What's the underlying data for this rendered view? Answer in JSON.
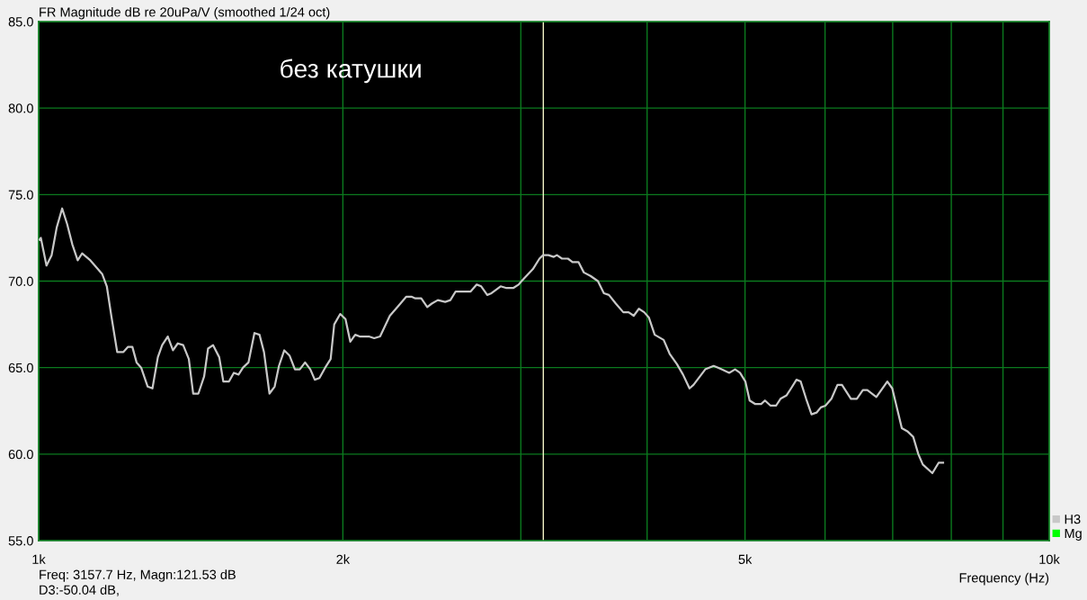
{
  "chart_data": {
    "type": "line",
    "title": "FR Magnitude dB re 20uPa/V (smoothed 1/24 oct)",
    "xlabel": "Frequency (Hz)",
    "annotations": [
      "без катушки",
      "Freq: 3157.7 Hz, Magn:121.53 dB",
      "D3:-50.04 dB,"
    ],
    "series": [
      {
        "name": "H3",
        "color": "#c8c8c8",
        "x": [
          1002,
          1005,
          1018,
          1030,
          1042,
          1055,
          1067,
          1080,
          1093,
          1104,
          1125,
          1156,
          1168,
          1180,
          1196,
          1213,
          1226,
          1238,
          1250,
          1263,
          1282,
          1296,
          1312,
          1325,
          1342,
          1358,
          1373,
          1390,
          1408,
          1422,
          1439,
          1458,
          1471,
          1488,
          1509,
          1523,
          1543,
          1560,
          1577,
          1593,
          1613,
          1635,
          1654,
          1671,
          1692,
          1712,
          1729,
          1750,
          1771,
          1793,
          1813,
          1835,
          1857,
          1876,
          1896,
          1921,
          1945,
          1961,
          1988,
          2012,
          2034,
          2057,
          2078,
          2122,
          2148,
          2177,
          2226,
          2272,
          2311,
          2338,
          2359,
          2391,
          2424,
          2449,
          2483,
          2525,
          2555,
          2586,
          2622,
          2676,
          2713,
          2741,
          2779,
          2806,
          2865,
          2904,
          2948,
          2985,
          3005,
          3084,
          3130,
          3156,
          3195,
          3234,
          3257,
          3295,
          3340,
          3375,
          3421,
          3463,
          3516,
          3576,
          3625,
          3667,
          3725,
          3789,
          3835,
          3880,
          3926,
          3974,
          4016,
          4070,
          4154,
          4211,
          4282,
          4341,
          4406,
          4446,
          4567,
          4655,
          4702,
          4740,
          4823,
          4888,
          4943,
          5004,
          5053,
          5115,
          5187,
          5232,
          5300,
          5366,
          5421,
          5497,
          5553,
          5622,
          5676,
          5747,
          5818,
          5885,
          5943,
          6005,
          6088,
          6172,
          6236,
          6365,
          6451,
          6540,
          6607,
          6744,
          6915,
          6993,
          7147,
          7245,
          7335,
          7421,
          7497,
          7662,
          7772,
          7852
        ],
        "values": [
          72.4,
          72.5,
          70.9,
          71.5,
          73.1,
          74.2,
          73.3,
          72.1,
          71.2,
          71.6,
          71.2,
          70.4,
          69.7,
          68.0,
          65.9,
          65.9,
          66.2,
          66.2,
          65.3,
          65.0,
          63.9,
          63.8,
          65.6,
          66.3,
          66.8,
          66.0,
          66.4,
          66.3,
          65.5,
          63.5,
          63.5,
          64.5,
          66.1,
          66.3,
          65.6,
          64.2,
          64.2,
          64.7,
          64.6,
          65.0,
          65.3,
          67.0,
          66.9,
          65.9,
          63.5,
          63.9,
          65.1,
          66.0,
          65.7,
          64.9,
          64.9,
          65.3,
          64.9,
          64.3,
          64.4,
          65.0,
          65.5,
          67.5,
          68.1,
          67.8,
          66.5,
          66.9,
          66.8,
          66.8,
          66.7,
          66.8,
          68.0,
          68.6,
          69.1,
          69.1,
          69.0,
          69.0,
          68.5,
          68.7,
          68.9,
          68.8,
          68.9,
          69.4,
          69.4,
          69.4,
          69.8,
          69.7,
          69.2,
          69.3,
          69.7,
          69.6,
          69.6,
          69.8,
          70.0,
          70.7,
          71.3,
          71.5,
          71.5,
          71.4,
          71.5,
          71.3,
          71.3,
          71.1,
          71.1,
          70.5,
          70.3,
          70.0,
          69.3,
          69.2,
          68.7,
          68.2,
          68.2,
          68.0,
          68.4,
          68.2,
          67.9,
          66.9,
          66.6,
          65.8,
          65.2,
          64.6,
          63.8,
          64.0,
          64.9,
          65.1,
          65.0,
          64.9,
          64.7,
          64.9,
          64.7,
          64.2,
          63.1,
          62.9,
          62.9,
          63.1,
          62.8,
          62.8,
          63.2,
          63.4,
          63.8,
          64.3,
          64.2,
          63.2,
          62.3,
          62.4,
          62.7,
          62.8,
          63.2,
          64.0,
          64.0,
          63.2,
          63.2,
          63.7,
          63.7,
          63.3,
          64.2,
          63.8,
          61.5,
          61.3,
          61.0,
          60.0,
          59.4,
          58.9,
          59.5,
          59.5
        ]
      },
      {
        "name": "Mg",
        "color": "#00ff00"
      }
    ],
    "xlim": [
      1000,
      10000
    ],
    "ylim": [
      55,
      85
    ],
    "xticks": [
      {
        "value": 1000,
        "label": "1k"
      },
      {
        "value": 2000,
        "label": "2k"
      },
      {
        "value": 3000,
        "label": null
      },
      {
        "value": 4000,
        "label": null
      },
      {
        "value": 5000,
        "label": "5k"
      },
      {
        "value": 6000,
        "label": null
      },
      {
        "value": 7000,
        "label": null
      },
      {
        "value": 8000,
        "label": null
      },
      {
        "value": 9000,
        "label": null
      },
      {
        "value": 10000,
        "label": "10k"
      }
    ],
    "yticks": [
      {
        "value": 55,
        "label": "55.0"
      },
      {
        "value": 60,
        "label": "60.0"
      },
      {
        "value": 65,
        "label": "65.0"
      },
      {
        "value": 70,
        "label": "70.0"
      },
      {
        "value": 75,
        "label": "75.0"
      },
      {
        "value": 80,
        "label": "80.0"
      },
      {
        "value": 85,
        "label": "85.0"
      }
    ],
    "log": "x",
    "grid": true,
    "legend": "bottom right",
    "ref_lines": [
      {
        "axis": "x",
        "value": 3157.7,
        "color": "#f4f4c8"
      }
    ]
  }
}
